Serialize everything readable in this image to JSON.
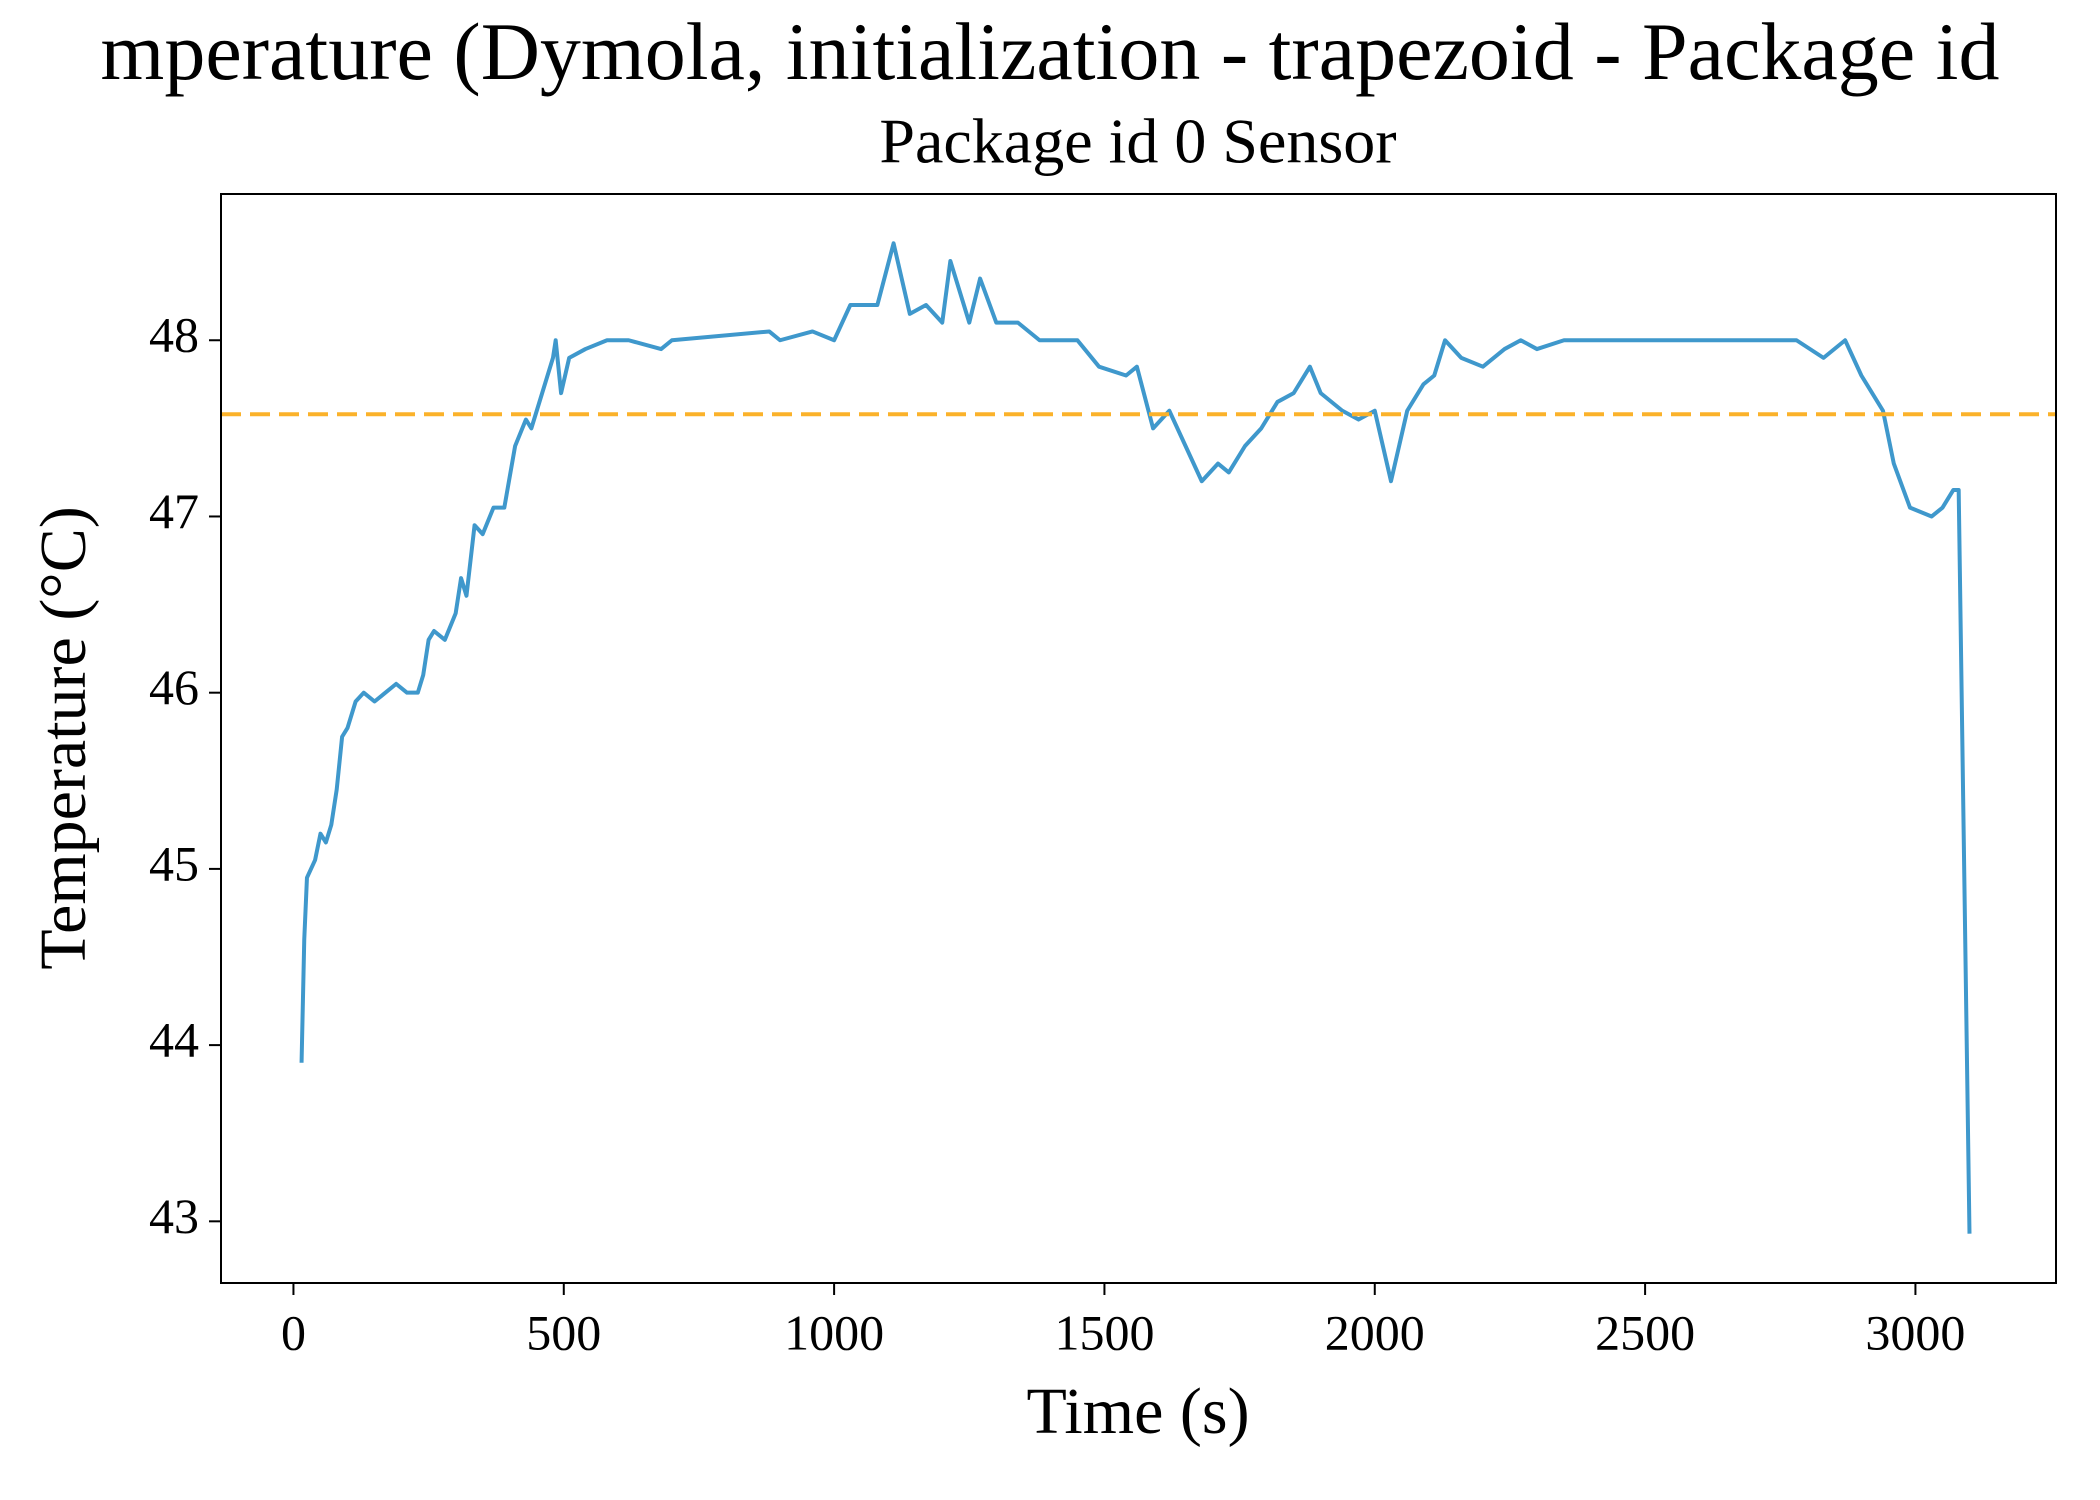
{
  "chart_data": {
    "type": "line",
    "title": "mperature (Dymola, initialization - trapezoid - Package id",
    "subtitle": "Package id 0 Sensor",
    "x_label": "Time (s)",
    "y_label": "Temperature (°C)",
    "x": [
      15,
      20,
      25,
      40,
      50,
      60,
      70,
      80,
      90,
      100,
      115,
      130,
      150,
      170,
      190,
      210,
      230,
      240,
      250,
      260,
      280,
      300,
      310,
      320,
      335,
      350,
      370,
      390,
      410,
      430,
      440,
      460,
      480,
      485,
      495,
      510,
      540,
      580,
      620,
      680,
      700,
      880,
      900,
      960,
      1000,
      1030,
      1080,
      1110,
      1140,
      1170,
      1200,
      1215,
      1250,
      1270,
      1300,
      1340,
      1380,
      1450,
      1490,
      1540,
      1560,
      1590,
      1620,
      1650,
      1680,
      1710,
      1730,
      1760,
      1790,
      1820,
      1850,
      1880,
      1900,
      1940,
      1970,
      2000,
      2030,
      2060,
      2090,
      2110,
      2130,
      2160,
      2200,
      2240,
      2270,
      2300,
      2350,
      2500,
      2630,
      2700,
      2780,
      2830,
      2870,
      2900,
      2940,
      2960,
      2990,
      3030,
      3050,
      3070,
      3080,
      3100
    ],
    "series": [
      {
        "color": "#3f98cc",
        "values": [
          43.9,
          44.6,
          44.95,
          45.05,
          45.2,
          45.15,
          45.25,
          45.45,
          45.75,
          45.8,
          45.95,
          46.0,
          45.95,
          46.0,
          46.05,
          46.0,
          46.0,
          46.1,
          46.3,
          46.35,
          46.3,
          46.45,
          46.65,
          46.55,
          46.95,
          46.9,
          47.05,
          47.05,
          47.4,
          47.55,
          47.5,
          47.7,
          47.9,
          48.0,
          47.7,
          47.9,
          47.95,
          48.0,
          48.0,
          47.95,
          48.0,
          48.05,
          48.0,
          48.05,
          48.0,
          48.2,
          48.2,
          48.55,
          48.15,
          48.2,
          48.1,
          48.45,
          48.1,
          48.35,
          48.1,
          48.1,
          48.0,
          48.0,
          47.85,
          47.8,
          47.85,
          47.5,
          47.6,
          47.4,
          47.2,
          47.3,
          47.25,
          47.4,
          47.5,
          47.65,
          47.7,
          47.85,
          47.7,
          47.6,
          47.55,
          47.6,
          47.2,
          47.6,
          47.75,
          47.8,
          48.0,
          47.9,
          47.85,
          47.95,
          48.0,
          47.95,
          48.0,
          48.0,
          48.0,
          48.0,
          48.0,
          47.9,
          48.0,
          47.8,
          47.6,
          47.3,
          47.05,
          47.0,
          47.05,
          47.15,
          47.15,
          42.93
        ]
      }
    ],
    "hline": {
      "value": 47.58,
      "color": "#fbb22a",
      "dashed": true
    },
    "xlim": [
      -134,
      3260
    ],
    "ylim": [
      42.65,
      48.83
    ],
    "xticks": [
      0,
      500,
      1000,
      1500,
      2000,
      2500,
      3000
    ],
    "yticks": [
      43,
      44,
      45,
      46,
      47,
      48
    ]
  }
}
